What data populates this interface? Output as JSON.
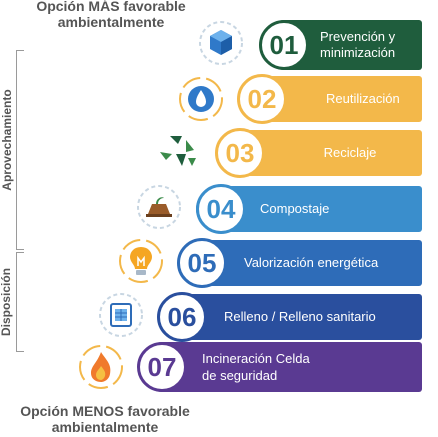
{
  "captions": {
    "top": "Opción MÁS favorable ambientalmente",
    "bottom": "Opción MENOS favorable ambientalmente"
  },
  "side_labels": {
    "aprovechamiento": "Aprovechamiento",
    "disposicion": "Disposición"
  },
  "steps": [
    {
      "number": "01",
      "label_line1": "Prevención y",
      "label_line2": "minimización",
      "color": "#1f5d3d",
      "icon": "cube-icon"
    },
    {
      "number": "02",
      "label": "Reutilización",
      "color": "#f3b84a",
      "icon": "water-drop-icon"
    },
    {
      "number": "03",
      "label": "Reciclaje",
      "color": "#f3b84a",
      "icon": "recycle-icon"
    },
    {
      "number": "04",
      "label": "Compostaje",
      "color": "#3a8ecc",
      "icon": "compost-icon"
    },
    {
      "number": "05",
      "label": "Valorización energética",
      "color": "#2e6cb8",
      "icon": "lightbulb-icon"
    },
    {
      "number": "06",
      "label": "Relleno / Relleno sanitario",
      "color": "#2a4f9e",
      "icon": "landfill-icon"
    },
    {
      "number": "07",
      "label_line1": "Incineración Celda",
      "label_line2": "de seguridad",
      "color": "#5a3a92",
      "icon": "fire-icon"
    }
  ]
}
